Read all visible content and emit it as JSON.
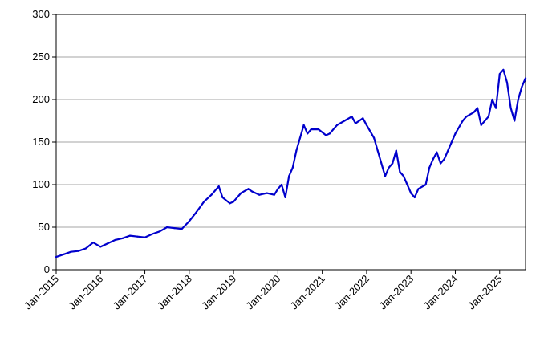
{
  "chart_data": {
    "type": "line",
    "title": "",
    "xlabel": "",
    "ylabel": "",
    "ylim": [
      0,
      300
    ],
    "xlim": [
      "2015-01",
      "2025-08"
    ],
    "grid": "horizontal",
    "legend": "none",
    "y_ticks": [
      "0",
      "50",
      "100",
      "150",
      "200",
      "250",
      "300"
    ],
    "x_ticks": [
      {
        "label": "Jan-2015",
        "date": "2015-01"
      },
      {
        "label": "Jan-2016",
        "date": "2016-01"
      },
      {
        "label": "Jan-2017",
        "date": "2017-01"
      },
      {
        "label": "Jan-2018",
        "date": "2018-01"
      },
      {
        "label": "Jan-2019",
        "date": "2019-01"
      },
      {
        "label": "Jan-2020",
        "date": "2020-01"
      },
      {
        "label": "Jan-2021",
        "date": "2021-01"
      },
      {
        "label": "Jan-2022",
        "date": "2022-01"
      },
      {
        "label": "Jan-2023",
        "date": "2023-01"
      },
      {
        "label": "Jan-2024",
        "date": "2024-01"
      },
      {
        "label": "Jan-2025",
        "date": "2025-01"
      }
    ],
    "series": [
      {
        "color": "#0000cc",
        "x": [
          "2015-01",
          "2015-03",
          "2015-05",
          "2015-07",
          "2015-09",
          "2015-11",
          "2016-01",
          "2016-03",
          "2016-05",
          "2016-07",
          "2016-09",
          "2016-11",
          "2017-01",
          "2017-03",
          "2017-05",
          "2017-07",
          "2017-09",
          "2017-11",
          "2018-01",
          "2018-03",
          "2018-05",
          "2018-07",
          "2018-09",
          "2018-10",
          "2018-12",
          "2019-01",
          "2019-03",
          "2019-05",
          "2019-06",
          "2019-08",
          "2019-10",
          "2019-12",
          "2020-01",
          "2020-02",
          "2020-03",
          "2020-04",
          "2020-05",
          "2020-06",
          "2020-07",
          "2020-08",
          "2020-09",
          "2020-10",
          "2020-12",
          "2021-02",
          "2021-03",
          "2021-05",
          "2021-07",
          "2021-09",
          "2021-10",
          "2021-12",
          "2022-01",
          "2022-03",
          "2022-04",
          "2022-06",
          "2022-07",
          "2022-08",
          "2022-09",
          "2022-10",
          "2022-11",
          "2022-12",
          "2023-01",
          "2023-02",
          "2023-03",
          "2023-05",
          "2023-06",
          "2023-07",
          "2023-08",
          "2023-09",
          "2023-10",
          "2023-12",
          "2024-01",
          "2024-03",
          "2024-04",
          "2024-06",
          "2024-07",
          "2024-08",
          "2024-10",
          "2024-11",
          "2024-12",
          "2025-01",
          "2025-02",
          "2025-03",
          "2025-04",
          "2025-05",
          "2025-06",
          "2025-07",
          "2025-08"
        ],
        "values": [
          15,
          18,
          21,
          22,
          25,
          32,
          27,
          31,
          35,
          37,
          40,
          39,
          38,
          42,
          45,
          50,
          49,
          48,
          57,
          68,
          80,
          88,
          98,
          85,
          78,
          80,
          90,
          95,
          92,
          88,
          90,
          88,
          95,
          100,
          85,
          110,
          120,
          140,
          155,
          170,
          160,
          165,
          165,
          158,
          160,
          170,
          175,
          180,
          172,
          178,
          170,
          155,
          140,
          110,
          120,
          125,
          140,
          115,
          110,
          100,
          90,
          85,
          95,
          100,
          120,
          130,
          138,
          125,
          130,
          150,
          160,
          175,
          180,
          185,
          190,
          170,
          180,
          200,
          190,
          230,
          235,
          220,
          190,
          175,
          200,
          215,
          225
        ]
      }
    ]
  }
}
